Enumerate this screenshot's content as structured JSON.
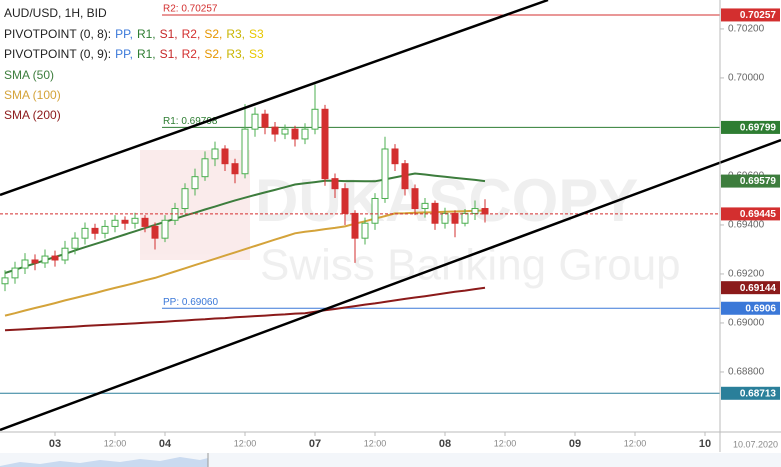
{
  "header": {
    "title": "AUD/USD, 1H, BID",
    "pivot_legends": [
      {
        "label": "PIVOTPOINT (0, 8):",
        "items": [
          {
            "text": "PP,",
            "color": "#3b78d8"
          },
          {
            "text": "R1,",
            "color": "#2e7d32"
          },
          {
            "text": "S1,",
            "color": "#c62828"
          },
          {
            "text": "R2,",
            "color": "#d32f2f"
          },
          {
            "text": "S2,",
            "color": "#e69500"
          },
          {
            "text": "R3,",
            "color": "#c8b400"
          },
          {
            "text": "S3",
            "color": "#e6c700"
          }
        ]
      },
      {
        "label": "PIVOTPOINT (0, 9):",
        "items": [
          {
            "text": "PP,",
            "color": "#3b78d8"
          },
          {
            "text": "R1,",
            "color": "#2e7d32"
          },
          {
            "text": "S1,",
            "color": "#c62828"
          },
          {
            "text": "R2,",
            "color": "#d32f2f"
          },
          {
            "text": "S2,",
            "color": "#e69500"
          },
          {
            "text": "R3,",
            "color": "#c8b400"
          },
          {
            "text": "S3",
            "color": "#e6c700"
          }
        ]
      }
    ]
  },
  "watermark": {
    "brand": "DUKASCOPY",
    "tagline": "Swiss Banking Group"
  },
  "date_stamp": "10.07.2020",
  "chart_data": {
    "type": "candlestick",
    "categories": [
      null,
      null,
      null,
      null,
      null,
      "03",
      null,
      null,
      null,
      null,
      null,
      "12:00",
      null,
      null,
      null,
      null,
      "04",
      null,
      null,
      null,
      null,
      null,
      null,
      null,
      "12:00",
      null,
      null,
      null,
      null,
      null,
      null,
      "07",
      null,
      null,
      null,
      null,
      null,
      "12:00",
      null,
      null,
      null,
      null,
      null,
      null,
      "08",
      null,
      null,
      null,
      null,
      null,
      "12:00",
      null,
      null,
      null,
      null,
      null,
      null,
      "09",
      null,
      null,
      null,
      null,
      null,
      "12:00",
      null,
      null,
      null,
      null,
      null,
      null,
      "10",
      null
    ],
    "open": [
      0.6916,
      0.69184,
      0.69224,
      0.69257,
      0.69245,
      0.69273,
      0.69257,
      0.69305,
      0.69346,
      0.69386,
      0.69366,
      0.69394,
      0.69419,
      0.69407,
      0.69427,
      0.69394,
      0.69346,
      0.69419,
      0.69467,
      0.69548,
      0.69597,
      0.6967,
      0.6971,
      0.6965,
      0.69609,
      0.69791,
      0.69852,
      0.69799,
      0.69771,
      0.69791,
      0.69751,
      0.69791,
      0.69872,
      0.69589,
      0.69548,
      0.69447,
      0.69346,
      0.69407,
      0.69508,
      0.6971,
      0.6965,
      0.69548,
      0.69467,
      0.69488,
      0.69407,
      0.69447,
      0.69407,
      0.69447,
      0.69467,
      null,
      null,
      null,
      null,
      null,
      null,
      null,
      null,
      null,
      null,
      null,
      null,
      null,
      null,
      null,
      null,
      null,
      null,
      null,
      null,
      null,
      null,
      null
    ],
    "high": [
      0.69215,
      0.6925,
      0.69285,
      0.6928,
      0.693,
      0.69295,
      0.69335,
      0.6937,
      0.6941,
      0.69405,
      0.6942,
      0.6944,
      0.69435,
      0.6945,
      0.6944,
      0.6941,
      0.6944,
      0.6949,
      0.6957,
      0.6963,
      0.697,
      0.6974,
      0.69725,
      0.6967,
      0.69893,
      0.6988,
      0.6987,
      0.6982,
      0.6981,
      0.69805,
      0.69815,
      0.69973,
      0.6989,
      0.6961,
      0.6957,
      0.6946,
      0.6943,
      0.6953,
      0.6976,
      0.6973,
      0.69665,
      0.69565,
      0.6951,
      0.695,
      0.6947,
      0.6946,
      0.69465,
      0.695,
      0.69505,
      null,
      null,
      null,
      null,
      null,
      null,
      null,
      null,
      null,
      null,
      null,
      null,
      null,
      null,
      null,
      null,
      null,
      null,
      null,
      null,
      null,
      null,
      null
    ],
    "low": [
      0.6913,
      0.6916,
      0.692,
      0.69215,
      0.69225,
      0.6923,
      0.6924,
      0.6928,
      0.6932,
      0.6934,
      0.69345,
      0.6937,
      0.6938,
      0.69385,
      0.6937,
      0.693,
      0.6933,
      0.694,
      0.6945,
      0.6952,
      0.6958,
      0.6964,
      0.6962,
      0.6957,
      0.6959,
      0.6976,
      0.6977,
      0.6974,
      0.6975,
      0.6972,
      0.6973,
      0.6977,
      0.6956,
      0.6951,
      0.694,
      0.69245,
      0.6932,
      0.6938,
      0.6949,
      0.6962,
      0.6952,
      0.6944,
      0.6943,
      0.6938,
      0.69385,
      0.6935,
      0.69394,
      0.6942,
      0.6941,
      null,
      null,
      null,
      null,
      null,
      null,
      null,
      null,
      null,
      null,
      null,
      null,
      null,
      null,
      null,
      null,
      null,
      null,
      null,
      null,
      null,
      null,
      null
    ],
    "close": [
      0.69184,
      0.69224,
      0.69257,
      0.69245,
      0.69273,
      0.69257,
      0.69305,
      0.69346,
      0.69386,
      0.69366,
      0.69394,
      0.69419,
      0.69407,
      0.69427,
      0.69394,
      0.69346,
      0.69419,
      0.69467,
      0.69548,
      0.69597,
      0.6967,
      0.6971,
      0.6965,
      0.69609,
      0.69791,
      0.69852,
      0.69799,
      0.69771,
      0.69791,
      0.69751,
      0.69791,
      0.69872,
      0.69589,
      0.69548,
      0.69447,
      0.69346,
      0.69407,
      0.69508,
      0.6971,
      0.6965,
      0.69548,
      0.69467,
      0.69488,
      0.69407,
      0.69447,
      0.69407,
      0.69447,
      0.69467,
      0.69445,
      null,
      null,
      null,
      null,
      null,
      null,
      null,
      null,
      null,
      null,
      null,
      null,
      null,
      null,
      null,
      null,
      null,
      null,
      null,
      null,
      null,
      null,
      null
    ],
    "up_color": "#4caf50",
    "down_color": "#d32f2f",
    "series": [
      {
        "name": "SMA (50)",
        "color": "#3d7d3d",
        "values": [
          0.69204,
          0.69217,
          0.6923,
          0.69243,
          0.69256,
          0.69269,
          0.69282,
          0.69296,
          0.69309,
          0.69322,
          0.69335,
          0.69348,
          0.69361,
          0.69374,
          0.69387,
          0.694,
          0.69413,
          0.69425,
          0.69438,
          0.6945,
          0.69463,
          0.69475,
          0.69488,
          0.695,
          0.69511,
          0.69522,
          0.69533,
          0.69543,
          0.69554,
          0.69565,
          0.6957,
          0.69575,
          0.6958,
          0.6958,
          0.69579,
          0.69579,
          0.69578,
          0.69578,
          0.69586,
          0.69594,
          0.69602,
          0.6961,
          0.69606,
          0.69601,
          0.69597,
          0.69592,
          0.69588,
          0.69584,
          0.69579,
          null,
          null,
          null,
          null,
          null,
          null,
          null,
          null,
          null,
          null,
          null,
          null,
          null,
          null,
          null,
          null,
          null,
          null,
          null,
          null,
          null,
          null,
          null
        ]
      },
      {
        "name": "SMA (100)",
        "color": "#d4a33a",
        "values": [
          0.6903,
          0.6904,
          0.69051,
          0.69061,
          0.69071,
          0.69081,
          0.69092,
          0.69102,
          0.69112,
          0.69122,
          0.69133,
          0.69143,
          0.69153,
          0.69163,
          0.69174,
          0.69184,
          0.69197,
          0.6921,
          0.69223,
          0.69236,
          0.69249,
          0.69262,
          0.69275,
          0.69288,
          0.69301,
          0.69314,
          0.69327,
          0.6934,
          0.69353,
          0.69366,
          0.69372,
          0.69377,
          0.69383,
          0.69388,
          0.69394,
          0.69405,
          0.69415,
          0.69426,
          0.69436,
          0.69447,
          0.69448,
          0.6945,
          0.69451,
          0.69452,
          0.69454,
          0.69455,
          0.69456,
          0.69458,
          0.69459,
          null,
          null,
          null,
          null,
          null,
          null,
          null,
          null,
          null,
          null,
          null,
          null,
          null,
          null,
          null,
          null,
          null,
          null,
          null,
          null,
          null,
          null,
          null
        ]
      },
      {
        "name": "SMA (200)",
        "color": "#8b1a1a",
        "values": [
          0.6897,
          0.68972,
          0.68974,
          0.68977,
          0.68979,
          0.68981,
          0.68983,
          0.68985,
          0.68988,
          0.6899,
          0.68992,
          0.68994,
          0.68996,
          0.68998,
          0.69001,
          0.69003,
          0.69005,
          0.69008,
          0.6901,
          0.69013,
          0.69015,
          0.69018,
          0.6902,
          0.69023,
          0.69025,
          0.69028,
          0.6903,
          0.69033,
          0.69035,
          0.69038,
          0.6904,
          0.69046,
          0.69052,
          0.69057,
          0.69063,
          0.69069,
          0.69075,
          0.6908,
          0.69086,
          0.69092,
          0.69098,
          0.69104,
          0.69109,
          0.69115,
          0.69121,
          0.69127,
          0.69132,
          0.69138,
          0.69144,
          null,
          null,
          null,
          null,
          null,
          null,
          null,
          null,
          null,
          null,
          null,
          null,
          null,
          null,
          null,
          null,
          null,
          null,
          null,
          null,
          null,
          null,
          null
        ]
      }
    ],
    "levels": [
      {
        "label": "R2: 0.70257",
        "value": 0.70257,
        "color": "#d32f2f"
      },
      {
        "label": "R1: 0.69798",
        "value": 0.69798,
        "box": 0.69799,
        "color": "#2e7d32"
      },
      {
        "label": "PP: 0.69060",
        "value": 0.6906,
        "color": "#3b78d8"
      },
      {
        "value": 0.68713,
        "color": "#2a7f9a"
      }
    ],
    "ylim": [
      0.68555,
      0.70318
    ],
    "yticks": [
      {
        "value": 0.702,
        "label": "0.70200"
      },
      {
        "value": 0.7,
        "label": "0.70000"
      },
      {
        "value": 0.696,
        "label": "0.69600"
      },
      {
        "value": 0.694,
        "label": "0.69400"
      },
      {
        "value": 0.692,
        "label": "0.69200"
      },
      {
        "value": 0.69,
        "label": "0.69000"
      },
      {
        "value": 0.688,
        "label": "0.68800"
      }
    ]
  }
}
